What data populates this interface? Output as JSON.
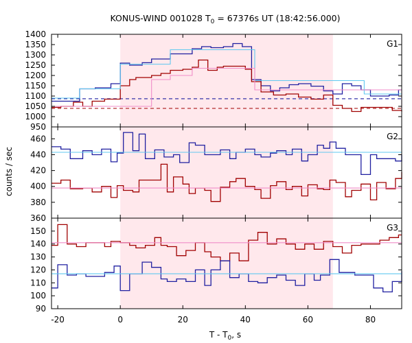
{
  "chart_data": {
    "type": "line",
    "title": "KONUS-WIND 001028 T",
    "title_sub": "0",
    "title_rest": " = 67376s UT (18:42:56.000)",
    "xlabel_main": "T - T",
    "xlabel_sub": "0",
    "xlabel_rest": ", s",
    "ylabel": "counts / sec",
    "xlim": [
      -22,
      90
    ],
    "xticks": [
      -20,
      0,
      20,
      40,
      60,
      80
    ],
    "xtick_labels": [
      "-20",
      "0",
      "20",
      "40",
      "60",
      "80"
    ],
    "highlight_interval": [
      0,
      68
    ],
    "colors": {
      "highlight": "#ffe8ec",
      "blue": "#1f1fa0",
      "red": "#a00000",
      "light_blue": "#5fc8f0",
      "pink": "#f08cc8"
    },
    "panels": [
      {
        "label": "G1",
        "ylim": [
          950,
          1400
        ],
        "yticks": [
          950,
          1000,
          1050,
          1100,
          1150,
          1200,
          1250,
          1300,
          1350,
          1400
        ],
        "ytick_labels": [
          "950",
          "1000",
          "1050",
          "1100",
          "1150",
          "1200",
          "1250",
          "1300",
          "1350",
          "1400"
        ],
        "series": [
          {
            "color": "blue",
            "x": [
              -22,
              -13,
              -8,
              -3,
              0,
              3,
              7,
              10,
              16,
              23,
              26,
              29,
              33,
              36,
              39,
              42,
              45,
              48,
              51,
              54,
              57,
              61,
              65,
              68,
              71,
              74,
              77,
              80,
              83,
              86,
              89,
              90
            ],
            "y": [
              1075,
              1135,
              1140,
              1160,
              1260,
              1250,
              1262,
              1280,
              1305,
              1330,
              1340,
              1335,
              1340,
              1355,
              1340,
              1180,
              1150,
              1125,
              1140,
              1155,
              1160,
              1148,
              1125,
              1110,
              1160,
              1150,
              1130,
              1100,
              1100,
              1105,
              1130,
              1130
            ]
          },
          {
            "color": "red",
            "x": [
              -22,
              -19,
              -15,
              -12,
              -9,
              -5,
              -3,
              0,
              3,
              5,
              10,
              13,
              16,
              20,
              23,
              25,
              28,
              31,
              33,
              36,
              40,
              42,
              45,
              49,
              53,
              57,
              61,
              65,
              68,
              71,
              74,
              77,
              81,
              84,
              87,
              90
            ],
            "y": [
              1045,
              1050,
              1070,
              1050,
              1075,
              1085,
              1085,
              1150,
              1180,
              1190,
              1200,
              1210,
              1225,
              1230,
              1240,
              1275,
              1225,
              1240,
              1245,
              1245,
              1230,
              1170,
              1120,
              1105,
              1110,
              1095,
              1085,
              1105,
              1055,
              1040,
              1025,
              1045,
              1045,
              1045,
              1030,
              1025
            ]
          },
          {
            "color": "light_blue",
            "x": [
              -22,
              -13,
              -3,
              0,
              10,
              16,
              23,
              43,
              68,
              78,
              90
            ],
            "y": [
              1090,
              1135,
              1135,
              1255,
              1255,
              1325,
              1325,
              1175,
              1175,
              1110,
              1110
            ]
          },
          {
            "color": "pink",
            "x": [
              -22,
              0,
              10,
              16,
              23,
              43,
              68,
              90
            ],
            "y": [
              1050,
              1050,
              1180,
              1200,
              1235,
              1130,
              1130,
              1040
            ]
          }
        ],
        "dashed_levels": [
          {
            "color": "blue",
            "y": 1087
          },
          {
            "color": "red",
            "y": 1040
          }
        ]
      },
      {
        "label": "G2",
        "ylim": [
          360,
          475
        ],
        "yticks": [
          360,
          380,
          400,
          420,
          440,
          460
        ],
        "ytick_labels": [
          "360",
          "380",
          "400",
          "420",
          "440",
          "460"
        ],
        "series": [
          {
            "color": "blue",
            "x": [
              -22,
              -19,
              -16,
              -12,
              -9,
              -6,
              -3,
              -1,
              1,
              4,
              6,
              8,
              11,
              14,
              17,
              19,
              22,
              24,
              27,
              29,
              32,
              35,
              37,
              40,
              43,
              45,
              48,
              50,
              53,
              55,
              58,
              60,
              63,
              65,
              67,
              69,
              72,
              74,
              77,
              80,
              82,
              85,
              88,
              90
            ],
            "y": [
              450,
              447,
              435,
              445,
              440,
              447,
              431,
              442,
              468,
              445,
              466,
              435,
              446,
              437,
              440,
              430,
              455,
              452,
              440,
              440,
              446,
              435,
              443,
              447,
              440,
              437,
              442,
              445,
              440,
              447,
              432,
              440,
              452,
              448,
              456,
              448,
              440,
              440,
              415,
              440,
              435,
              435,
              432,
              440
            ]
          },
          {
            "color": "red",
            "x": [
              -22,
              -19,
              -16,
              -12,
              -9,
              -6,
              -3,
              -1,
              1,
              4,
              6,
              10,
              13,
              15,
              17,
              20,
              22,
              24,
              27,
              29,
              32,
              35,
              37,
              40,
              43,
              45,
              48,
              50,
              53,
              55,
              58,
              60,
              63,
              65,
              67,
              69,
              72,
              74,
              77,
              80,
              82,
              85,
              88,
              90
            ],
            "y": [
              404,
              408,
              397,
              398,
              393,
              400,
              386,
              401,
              395,
              393,
              408,
              408,
              428,
              393,
              412,
              403,
              391,
              398,
              395,
              381,
              399,
              406,
              410,
              400,
              396,
              385,
              401,
              406,
              396,
              400,
              388,
              402,
              397,
              396,
              408,
              405,
              387,
              395,
              403,
              383,
              405,
              397,
              410,
              418
            ]
          },
          {
            "color": "light_blue",
            "x": [
              -22,
              90
            ],
            "y": [
              443,
              443
            ]
          },
          {
            "color": "pink",
            "x": [
              -22,
              90
            ],
            "y": [
              398,
              398
            ]
          }
        ]
      },
      {
        "label": "G3",
        "ylim": [
          90,
          160
        ],
        "yticks": [
          90,
          100,
          110,
          120,
          130,
          140,
          150
        ],
        "ytick_labels": [
          "90",
          "100",
          "110",
          "120",
          "130",
          "140",
          "150"
        ],
        "series": [
          {
            "color": "red",
            "x": [
              -22,
              -20,
              -17,
              -14,
              -11,
              -8,
              -5,
              -3,
              0,
              3,
              5,
              8,
              11,
              13,
              15,
              18,
              21,
              24,
              27,
              29,
              32,
              35,
              38,
              41,
              44,
              47,
              50,
              53,
              56,
              59,
              62,
              65,
              68,
              71,
              74,
              77,
              80,
              83,
              86,
              89,
              90
            ],
            "y": [
              139,
              155,
              140,
              138,
              141,
              141,
              138,
              142,
              141,
              139,
              137,
              139,
              145,
              139,
              138,
              131,
              135,
              141,
              134,
              130,
              127,
              133,
              127,
              143,
              149,
              140,
              144,
              140,
              136,
              140,
              136,
              142,
              138,
              133,
              139,
              140,
              140,
              143,
              145,
              147,
              147
            ]
          },
          {
            "color": "blue",
            "x": [
              -22,
              -20,
              -17,
              -14,
              -11,
              -8,
              -5,
              -2,
              0,
              3,
              7,
              10,
              13,
              15,
              18,
              21,
              24,
              27,
              29,
              32,
              35,
              38,
              41,
              44,
              47,
              50,
              53,
              56,
              59,
              62,
              64,
              67,
              70,
              73,
              75,
              78,
              81,
              84,
              87,
              90
            ],
            "y": [
              106,
              124,
              116,
              117,
              115,
              115,
              118,
              123,
              104,
              117,
              126,
              122,
              113,
              111,
              113,
              111,
              120,
              108,
              120,
              127,
              114,
              117,
              111,
              110,
              114,
              116,
              112,
              108,
              117,
              112,
              116,
              128,
              118,
              118,
              116,
              116,
              106,
              103,
              111,
              119
            ]
          },
          {
            "color": "pink",
            "x": [
              -22,
              90
            ],
            "y": [
              141,
              141
            ]
          },
          {
            "color": "light_blue",
            "x": [
              -22,
              90
            ],
            "y": [
              117,
              117
            ]
          }
        ]
      }
    ]
  }
}
